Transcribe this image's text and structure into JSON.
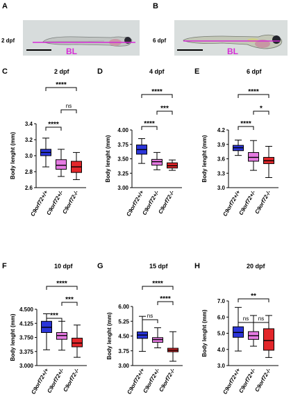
{
  "images": [
    {
      "panel": "A",
      "stage": "2 dpf",
      "bl_label": "BL"
    },
    {
      "panel": "B",
      "stage": "6 dpf",
      "bl_label": "BL"
    }
  ],
  "chart_data": [
    {
      "panel": "C",
      "type": "box",
      "title": "2 dpf",
      "ylabel": "Body lenght (mm)",
      "ylim": [
        2.6,
        3.4
      ],
      "yticks": [
        "2.6",
        "2.8",
        "3.0",
        "3.2",
        "3.4"
      ],
      "categories": [
        "C9orf72+/+",
        "C9orf72+/-",
        "C9orf72-/-"
      ],
      "boxes": [
        {
          "min": 2.86,
          "q1": 3.0,
          "median": 3.04,
          "q3": 3.08,
          "max": 3.22
        },
        {
          "min": 2.74,
          "q1": 2.83,
          "median": 2.88,
          "q3": 2.95,
          "max": 3.08
        },
        {
          "min": 2.7,
          "q1": 2.79,
          "median": 2.86,
          "q3": 2.93,
          "max": 3.04
        }
      ],
      "comparisons": [
        {
          "from": 0,
          "to": 2,
          "label": "****"
        },
        {
          "from": 1,
          "to": 2,
          "label": "ns"
        },
        {
          "from": 0,
          "to": 1,
          "label": "****"
        }
      ]
    },
    {
      "panel": "D",
      "type": "box",
      "title": "4 dpf",
      "ylabel": "Body lenght (mm)",
      "ylim": [
        3.0,
        4.0
      ],
      "yticks": [
        "3.00",
        "3.25",
        "3.50",
        "3.75",
        "4.00"
      ],
      "categories": [
        "C9orf72+/+",
        "C9orf72+/-",
        "C9orf72-/-"
      ],
      "boxes": [
        {
          "min": 3.42,
          "q1": 3.58,
          "median": 3.66,
          "q3": 3.74,
          "max": 3.85
        },
        {
          "min": 3.31,
          "q1": 3.39,
          "median": 3.45,
          "q3": 3.49,
          "max": 3.61
        },
        {
          "min": 3.3,
          "q1": 3.34,
          "median": 3.38,
          "q3": 3.43,
          "max": 3.48
        }
      ],
      "comparisons": [
        {
          "from": 0,
          "to": 2,
          "label": "****"
        },
        {
          "from": 1,
          "to": 2,
          "label": "***"
        },
        {
          "from": 0,
          "to": 1,
          "label": "****"
        }
      ]
    },
    {
      "panel": "E",
      "type": "box",
      "title": "6 dpf",
      "ylabel": "Body lenght (mm)",
      "ylim": [
        3.0,
        4.2
      ],
      "yticks": [
        "3.0",
        "3.3",
        "3.6",
        "3.9",
        "4.2"
      ],
      "categories": [
        "C9orf72+/+",
        "C9orf72+/-",
        "C9orf72-/-"
      ],
      "boxes": [
        {
          "min": 3.67,
          "q1": 3.77,
          "median": 3.83,
          "q3": 3.88,
          "max": 3.99
        },
        {
          "min": 3.36,
          "q1": 3.55,
          "median": 3.63,
          "q3": 3.73,
          "max": 3.98
        },
        {
          "min": 3.21,
          "q1": 3.5,
          "median": 3.56,
          "q3": 3.63,
          "max": 3.86
        }
      ],
      "comparisons": [
        {
          "from": 0,
          "to": 2,
          "label": "****"
        },
        {
          "from": 1,
          "to": 2,
          "label": "*"
        },
        {
          "from": 0,
          "to": 1,
          "label": "****"
        }
      ]
    },
    {
      "panel": "F",
      "type": "box",
      "title": "10 dpf",
      "ylabel": "Body lenght (mm)",
      "ylim": [
        3.0,
        4.5
      ],
      "yticks": [
        "3.000",
        "3.375",
        "3.750",
        "4.125",
        "4.500"
      ],
      "categories": [
        "C9orf72+/+",
        "C9orf72+/-",
        "C9orf72-/-"
      ],
      "boxes": [
        {
          "min": 3.42,
          "q1": 3.88,
          "median": 4.02,
          "q3": 4.18,
          "max": 4.38
        },
        {
          "min": 3.41,
          "q1": 3.7,
          "median": 3.8,
          "q3": 3.88,
          "max": 4.18
        },
        {
          "min": 3.22,
          "q1": 3.5,
          "median": 3.6,
          "q3": 3.73,
          "max": 4.08
        }
      ],
      "comparisons": [
        {
          "from": 0,
          "to": 2,
          "label": "****"
        },
        {
          "from": 1,
          "to": 2,
          "label": "***"
        },
        {
          "from": 0,
          "to": 1,
          "label": "***"
        }
      ]
    },
    {
      "panel": "G",
      "type": "box",
      "title": "15 dpf",
      "ylabel": "Body lenght (mm)",
      "ylim": [
        3.0,
        6.0
      ],
      "yticks": [
        "3.00",
        "3.75",
        "4.50",
        "5.25",
        "6.00"
      ],
      "categories": [
        "C9orf72+/+",
        "C9orf72+/-",
        "C9orf72-/-"
      ],
      "boxes": [
        {
          "min": 3.72,
          "q1": 4.38,
          "median": 4.55,
          "q3": 4.71,
          "max": 5.5
        },
        {
          "min": 3.9,
          "q1": 4.18,
          "median": 4.32,
          "q3": 4.42,
          "max": 4.92
        },
        {
          "min": 3.22,
          "q1": 3.7,
          "median": 3.78,
          "q3": 3.88,
          "max": 4.72
        }
      ],
      "comparisons": [
        {
          "from": 0,
          "to": 2,
          "label": "****"
        },
        {
          "from": 1,
          "to": 2,
          "label": "****"
        },
        {
          "from": 0,
          "to": 1,
          "label": "ns"
        }
      ]
    },
    {
      "panel": "H",
      "type": "box",
      "title": "20 dpf",
      "ylabel": "Body lenght (mm)",
      "ylim": [
        3.0,
        7.0
      ],
      "yticks": [
        "3.0",
        "4.0",
        "5.0",
        "6.0",
        "7.0"
      ],
      "categories": [
        "C9orf72+/+",
        "C9orf72+/-",
        "C9orf72-/-"
      ],
      "boxes": [
        {
          "min": 3.9,
          "q1": 4.75,
          "median": 5.05,
          "q3": 5.4,
          "max": 6.6
        },
        {
          "min": 4.2,
          "q1": 4.62,
          "median": 4.85,
          "q3": 5.1,
          "max": 6.1
        },
        {
          "min": 3.5,
          "q1": 3.95,
          "median": 4.55,
          "q3": 5.28,
          "max": 6.1
        }
      ],
      "comparisons": [
        {
          "from": 0,
          "to": 2,
          "label": "**"
        },
        {
          "from": 0,
          "to": 1,
          "label": "ns"
        },
        {
          "from": 1,
          "to": 2,
          "label": "ns"
        }
      ]
    }
  ],
  "colors": {
    "wt": "#2b35d9",
    "het": "#e57be2",
    "ko": "#e3262a",
    "magenta": "#d62ad6"
  }
}
